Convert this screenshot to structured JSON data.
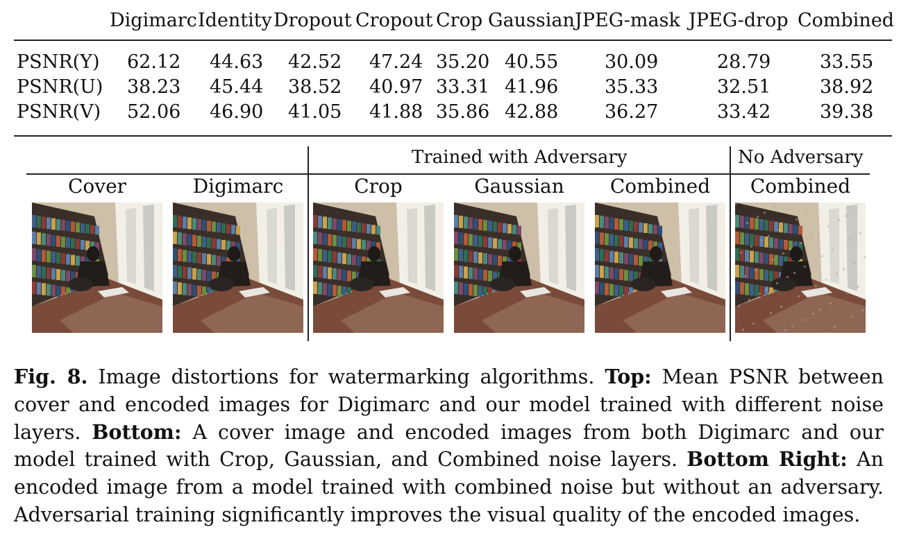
{
  "table": {
    "columns": [
      "Digimarc",
      "Identity",
      "Dropout",
      "Cropout",
      "Crop",
      "Gaussian",
      "JPEG-mask",
      "JPEG-drop",
      "Combined"
    ],
    "rows": [
      {
        "label": "PSNR(Y)",
        "values": [
          "62.12",
          "44.63",
          "42.52",
          "47.24",
          "35.20",
          "40.55",
          "30.09",
          "28.79",
          "33.55"
        ]
      },
      {
        "label": "PSNR(U)",
        "values": [
          "38.23",
          "45.44",
          "38.52",
          "40.97",
          "33.31",
          "41.96",
          "35.33",
          "32.51",
          "38.92"
        ]
      },
      {
        "label": "PSNR(V)",
        "values": [
          "52.06",
          "46.90",
          "41.05",
          "41.88",
          "35.86",
          "42.88",
          "36.27",
          "33.42",
          "39.38"
        ]
      }
    ]
  },
  "figure": {
    "group_trained": "Trained with Adversary",
    "group_no_adv": "No Adversary",
    "image_labels": [
      "Cover",
      "Digimarc",
      "Crop",
      "Gaussian",
      "Combined",
      "Combined"
    ]
  },
  "caption": {
    "fig_label": "Fig. 8.",
    "p1": " Image distortions for watermarking algorithms. ",
    "top_label": "Top:",
    "p2": " Mean PSNR between cover and encoded images for Digimarc and our model trained with different noise layers. ",
    "bottom_label": "Bottom:",
    "p3": " A cover image and encoded images from both Digimarc and our model trained with Crop, Gaussian, and Combined noise layers. ",
    "bottom_right_label": "Bottom Right:",
    "p4": " An encoded image from a model trained with combined noise but without an adversary. Adversarial training significantly improves the visual quality of the encoded images."
  }
}
